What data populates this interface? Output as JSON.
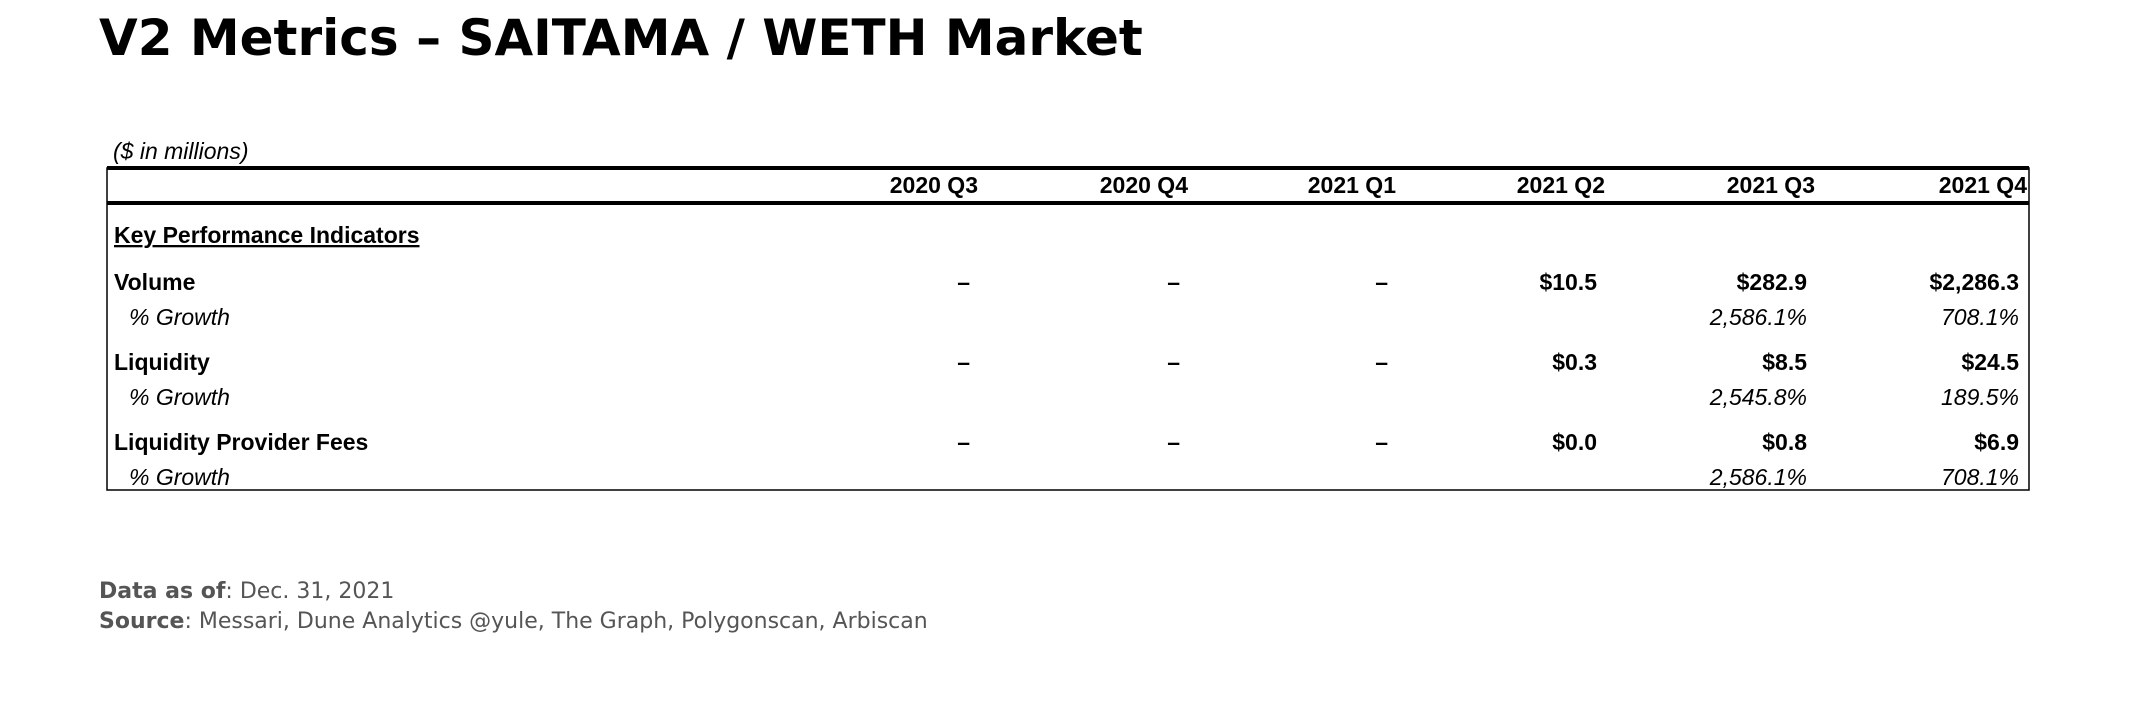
{
  "header": {
    "title": "V2 Metrics – SAITAMA / WETH Market"
  },
  "table": {
    "note": "($ in millions)",
    "columns": [
      "2020 Q3",
      "2020 Q4",
      "2021 Q1",
      "2021 Q2",
      "2021 Q3",
      "2021 Q4"
    ],
    "section": "Key Performance Indicators",
    "rows": [
      {
        "label": "Volume",
        "values": [
          "–",
          "–",
          "–",
          "$10.5",
          "$282.9",
          "$2,286.3"
        ],
        "growth_label": "% Growth",
        "growth": [
          null,
          null,
          null,
          null,
          "2,586.1%",
          "708.1%"
        ]
      },
      {
        "label": "Liquidity",
        "values": [
          "–",
          "–",
          "–",
          "$0.3",
          "$8.5",
          "$24.5"
        ],
        "growth_label": "% Growth",
        "growth": [
          null,
          null,
          null,
          null,
          "2,545.8%",
          "189.5%"
        ]
      },
      {
        "label": "Liquidity Provider Fees",
        "values": [
          "–",
          "–",
          "–",
          "$0.0",
          "$0.8",
          "$6.9"
        ],
        "growth_label": "% Growth",
        "growth": [
          null,
          null,
          null,
          null,
          "2,586.1%",
          "708.1%"
        ]
      }
    ]
  },
  "footer": {
    "date_label": "Data as of",
    "date": "Dec. 31, 2021",
    "source_label": "Source",
    "source": "Messari, Dune Analytics @yule, The Graph, Polygonscan, Arbiscan"
  }
}
